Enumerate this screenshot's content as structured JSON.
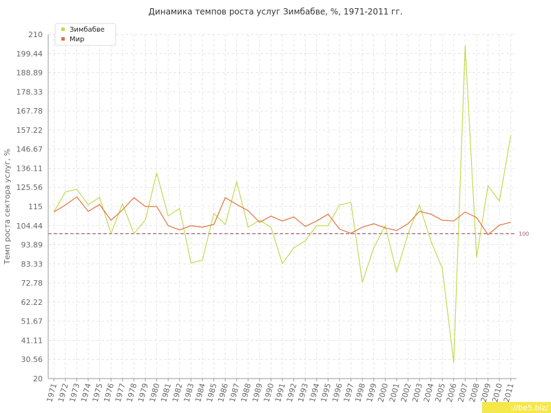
{
  "chart_data": {
    "type": "line",
    "title": "Динамика темпов роста услуг Зимбабве, %, 1971-2011 гг.",
    "y_label": "Темп роста сектора услуг, %",
    "watermark": "://be5.biz/",
    "categories": [
      "1971",
      "1972",
      "1973",
      "1974",
      "1975",
      "1976",
      "1977",
      "1978",
      "1979",
      "1980",
      "1981",
      "1982",
      "1983",
      "1984",
      "1985",
      "1986",
      "1987",
      "1988",
      "1989",
      "1990",
      "1991",
      "1992",
      "1993",
      "1994",
      "1995",
      "1996",
      "1997",
      "1998",
      "1999",
      "2000",
      "2001",
      "2002",
      "2003",
      "2004",
      "2005",
      "2006",
      "2007",
      "2008",
      "2009",
      "2010",
      "2011"
    ],
    "series": [
      {
        "name": "Зимбабве",
        "color": "#c3d94e",
        "values": [
          112,
          123,
          124.5,
          116,
          120,
          100,
          116.5,
          100,
          107.5,
          133.6,
          109.7,
          113.9,
          83.8,
          85.4,
          111.2,
          105,
          128.7,
          103.6,
          107.4,
          103.6,
          83.5,
          92.2,
          96,
          104.4,
          104.4,
          115.8,
          117.3,
          73.2,
          92.2,
          104.4,
          78.9,
          100,
          115.8,
          96,
          80.8,
          28.7,
          203.9,
          86.9,
          126.4,
          118,
          154.5
        ]
      },
      {
        "name": "Мир",
        "color": "#e0703a",
        "values": [
          112,
          115.8,
          120.3,
          112.3,
          116.1,
          107.4,
          113.1,
          119.9,
          115,
          115,
          104.4,
          102.1,
          104.4,
          103.6,
          105.1,
          119.9,
          116.1,
          112.7,
          106.3,
          109.7,
          107,
          109.3,
          104,
          107,
          110.8,
          102.5,
          100.2,
          103.6,
          105.5,
          103.2,
          101.7,
          105.5,
          112.3,
          110.8,
          107.4,
          107,
          112,
          108.9,
          99.4,
          104.7,
          106.3
        ]
      }
    ],
    "reference": {
      "value": 100,
      "label": "100",
      "color": "#a0606e"
    },
    "ylim": [
      20,
      210
    ],
    "yticks": [
      20,
      30.56,
      41.11,
      51.67,
      62.22,
      72.78,
      83.33,
      93.89,
      104.44,
      115,
      125.56,
      136.11,
      146.67,
      157.22,
      167.78,
      178.33,
      188.89,
      199.44,
      210
    ],
    "grid": true
  }
}
